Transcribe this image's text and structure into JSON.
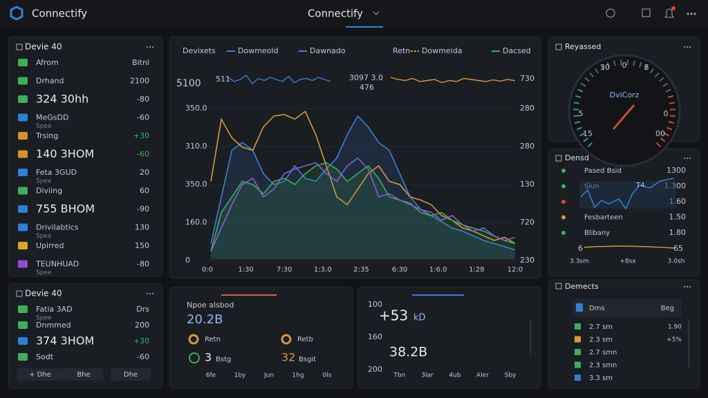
{
  "header": {
    "brand": "Connectify",
    "center_title": "Connectify"
  },
  "device_panel": {
    "title": "Devie 40",
    "rows": [
      {
        "label": "Afrom",
        "value": "Bitnl",
        "icon": "#3fae5a"
      },
      {
        "label": "Drhand",
        "value": "2100",
        "icon": "#3fae5a"
      },
      {
        "label": "324 30hh",
        "value": "-80",
        "icon": "#3fae5a",
        "big": true
      },
      {
        "label": "MeGsDD",
        "sub": "Spee",
        "value": "-60",
        "icon": "#2f7fd6"
      },
      {
        "label": "Trsing",
        "value": "+30",
        "icon": "#d8902f",
        "value_color": "#3fae5a"
      },
      {
        "label": "140 3HOM",
        "value": "-60",
        "icon": "#d8902f",
        "big": true,
        "value_color": "#3fae5a"
      },
      {
        "label": "Feta 3GUD",
        "sub": "Spee",
        "value": "20",
        "icon": "#2f7fd6"
      },
      {
        "label": "Diviing",
        "value": "60",
        "icon": "#3fae5a"
      },
      {
        "label": "755 BHOM",
        "value": "-90",
        "icon": "#2f7fd6",
        "big": true
      },
      {
        "label": "Drivilabtics",
        "sub": "Spee",
        "value": "130",
        "icon": "#2f7fd6"
      },
      {
        "label": "Upirred",
        "value": "150",
        "icon": "#d8a72f"
      },
      {
        "label": "TEUNHUAD",
        "sub": "Spee",
        "value": "-80",
        "icon": "#8a4fd0"
      }
    ]
  },
  "device_panel_2": {
    "title": "Devie 40",
    "rows": [
      {
        "label": "Fatia 3AD",
        "sub": "Spee",
        "value": "Drs",
        "icon": "#3fae5a"
      },
      {
        "label": "Dnmmed",
        "value": "200",
        "icon": "#3fae5a"
      },
      {
        "label": "374 3HOM",
        "value": "+30",
        "icon": "#2f7fd6",
        "big": true,
        "value_color": "#3fae5a"
      },
      {
        "label": "Sodt",
        "value": "-60",
        "icon": "#3fae5a"
      }
    ],
    "buttons": [
      "+ Dhe",
      "Bhe",
      "Dhe"
    ]
  },
  "main_chart": {
    "legend": [
      "Devixets",
      "Dowmeold",
      "Dawnado",
      "Retn",
      "Dowmeida",
      "Dacsed"
    ],
    "top_labels": [
      "5100",
      "511",
      "3097 3.0",
      "476",
      "730"
    ],
    "left_axis_labels": [
      "350.0",
      "310.0",
      "350.0",
      "160.0",
      "0"
    ],
    "right_axis_labels": [
      "280",
      "280",
      "130",
      "720",
      "230"
    ],
    "x_labels": [
      "0:0",
      "1:30",
      "7:30",
      "1:3.0",
      "2:35",
      "6:30",
      "1:6.0",
      "1:28",
      "12:0"
    ],
    "ylim": [
      0,
      100
    ],
    "series": [
      {
        "name": "Dowmeold",
        "color": "#3b7fd9",
        "values": [
          10,
          40,
          70,
          75,
          70,
          55,
          48,
          50,
          60,
          52,
          50,
          58,
          65,
          80,
          92,
          85,
          75,
          70,
          55,
          40,
          32,
          28,
          24,
          20,
          18,
          15,
          12,
          10,
          8,
          6
        ]
      },
      {
        "name": "Dowmeida",
        "color": "#d49a3a",
        "values": [
          50,
          90,
          78,
          72,
          70,
          85,
          92,
          93,
          90,
          95,
          80,
          60,
          40,
          35,
          45,
          55,
          60,
          50,
          48,
          40,
          38,
          35,
          28,
          25,
          20,
          18,
          15,
          12,
          14,
          10
        ]
      },
      {
        "name": "Dacsed",
        "color": "#3fae5a",
        "values": [
          5,
          30,
          40,
          50,
          48,
          42,
          50,
          52,
          48,
          55,
          60,
          62,
          58,
          50,
          55,
          60,
          52,
          40,
          38,
          36,
          30,
          28,
          30,
          25,
          22,
          20,
          18,
          15,
          12,
          10
        ]
      },
      {
        "name": "Dawnado",
        "color": "#8a5fd0",
        "values": [
          5,
          20,
          35,
          48,
          52,
          40,
          45,
          55,
          58,
          60,
          62,
          55,
          50,
          60,
          65,
          58,
          40,
          42,
          38,
          35,
          32,
          30,
          25,
          28,
          22,
          18,
          20,
          15,
          12,
          14
        ]
      }
    ],
    "sparks": [
      {
        "color": "#3b7fd9",
        "values": [
          60,
          40,
          50,
          70,
          30,
          55,
          45,
          60,
          50,
          40,
          65,
          35,
          50,
          55,
          45,
          60,
          50,
          40
        ]
      },
      {
        "color": "#d49a3a",
        "values": [
          60,
          50,
          45,
          55,
          40,
          45,
          50,
          35,
          45,
          40,
          55,
          50,
          45,
          40,
          48,
          42,
          50,
          44
        ]
      }
    ]
  },
  "card_1": {
    "title": "Npoe alsbod",
    "big": "20.2B",
    "items": [
      "Retn",
      "Retb"
    ],
    "count_a": "3",
    "count_a_label": "Bstg",
    "count_b": "32",
    "count_b_label": "Bsgit",
    "x_labels": [
      "6fe",
      "1by",
      "Jun",
      "1hg",
      "0ls"
    ]
  },
  "card_2": {
    "labels": [
      "100",
      "160",
      "200"
    ],
    "big_a": "+53",
    "big_a_unit": "kD",
    "big_b": "38.2B",
    "x_labels": [
      "Tbn",
      "3lar",
      "4ub",
      "Aler",
      "Sby"
    ]
  },
  "gauge_panel": {
    "title": "Reyassed",
    "center": "DviCorz",
    "labels": [
      "30",
      "0",
      "8",
      "5",
      "15",
      "0",
      "00"
    ]
  },
  "densd_panel": {
    "title": "Densd",
    "rows": [
      [
        "Pased Bsid",
        "1300"
      ],
      [
        "Siun",
        "1.300"
      ],
      [
        "",
        "1.60"
      ],
      [
        "Fesbarteen",
        "1.50"
      ],
      [
        "Blibany",
        "1.80"
      ]
    ],
    "peak": "T4",
    "low": "6",
    "high": "65",
    "x_labels": [
      "3.3sm",
      "+8sx",
      "3.0sh"
    ]
  },
  "demects_panel": {
    "title": "Demects",
    "head": "Dms",
    "head_right": "Beg",
    "rows": [
      [
        "2.7 sm",
        "1.90"
      ],
      [
        "2.3 sm",
        "+5%"
      ],
      [
        "2.7 smn",
        ""
      ],
      [
        "2.3 smn",
        ""
      ],
      [
        "3.3 sm",
        ""
      ]
    ]
  }
}
